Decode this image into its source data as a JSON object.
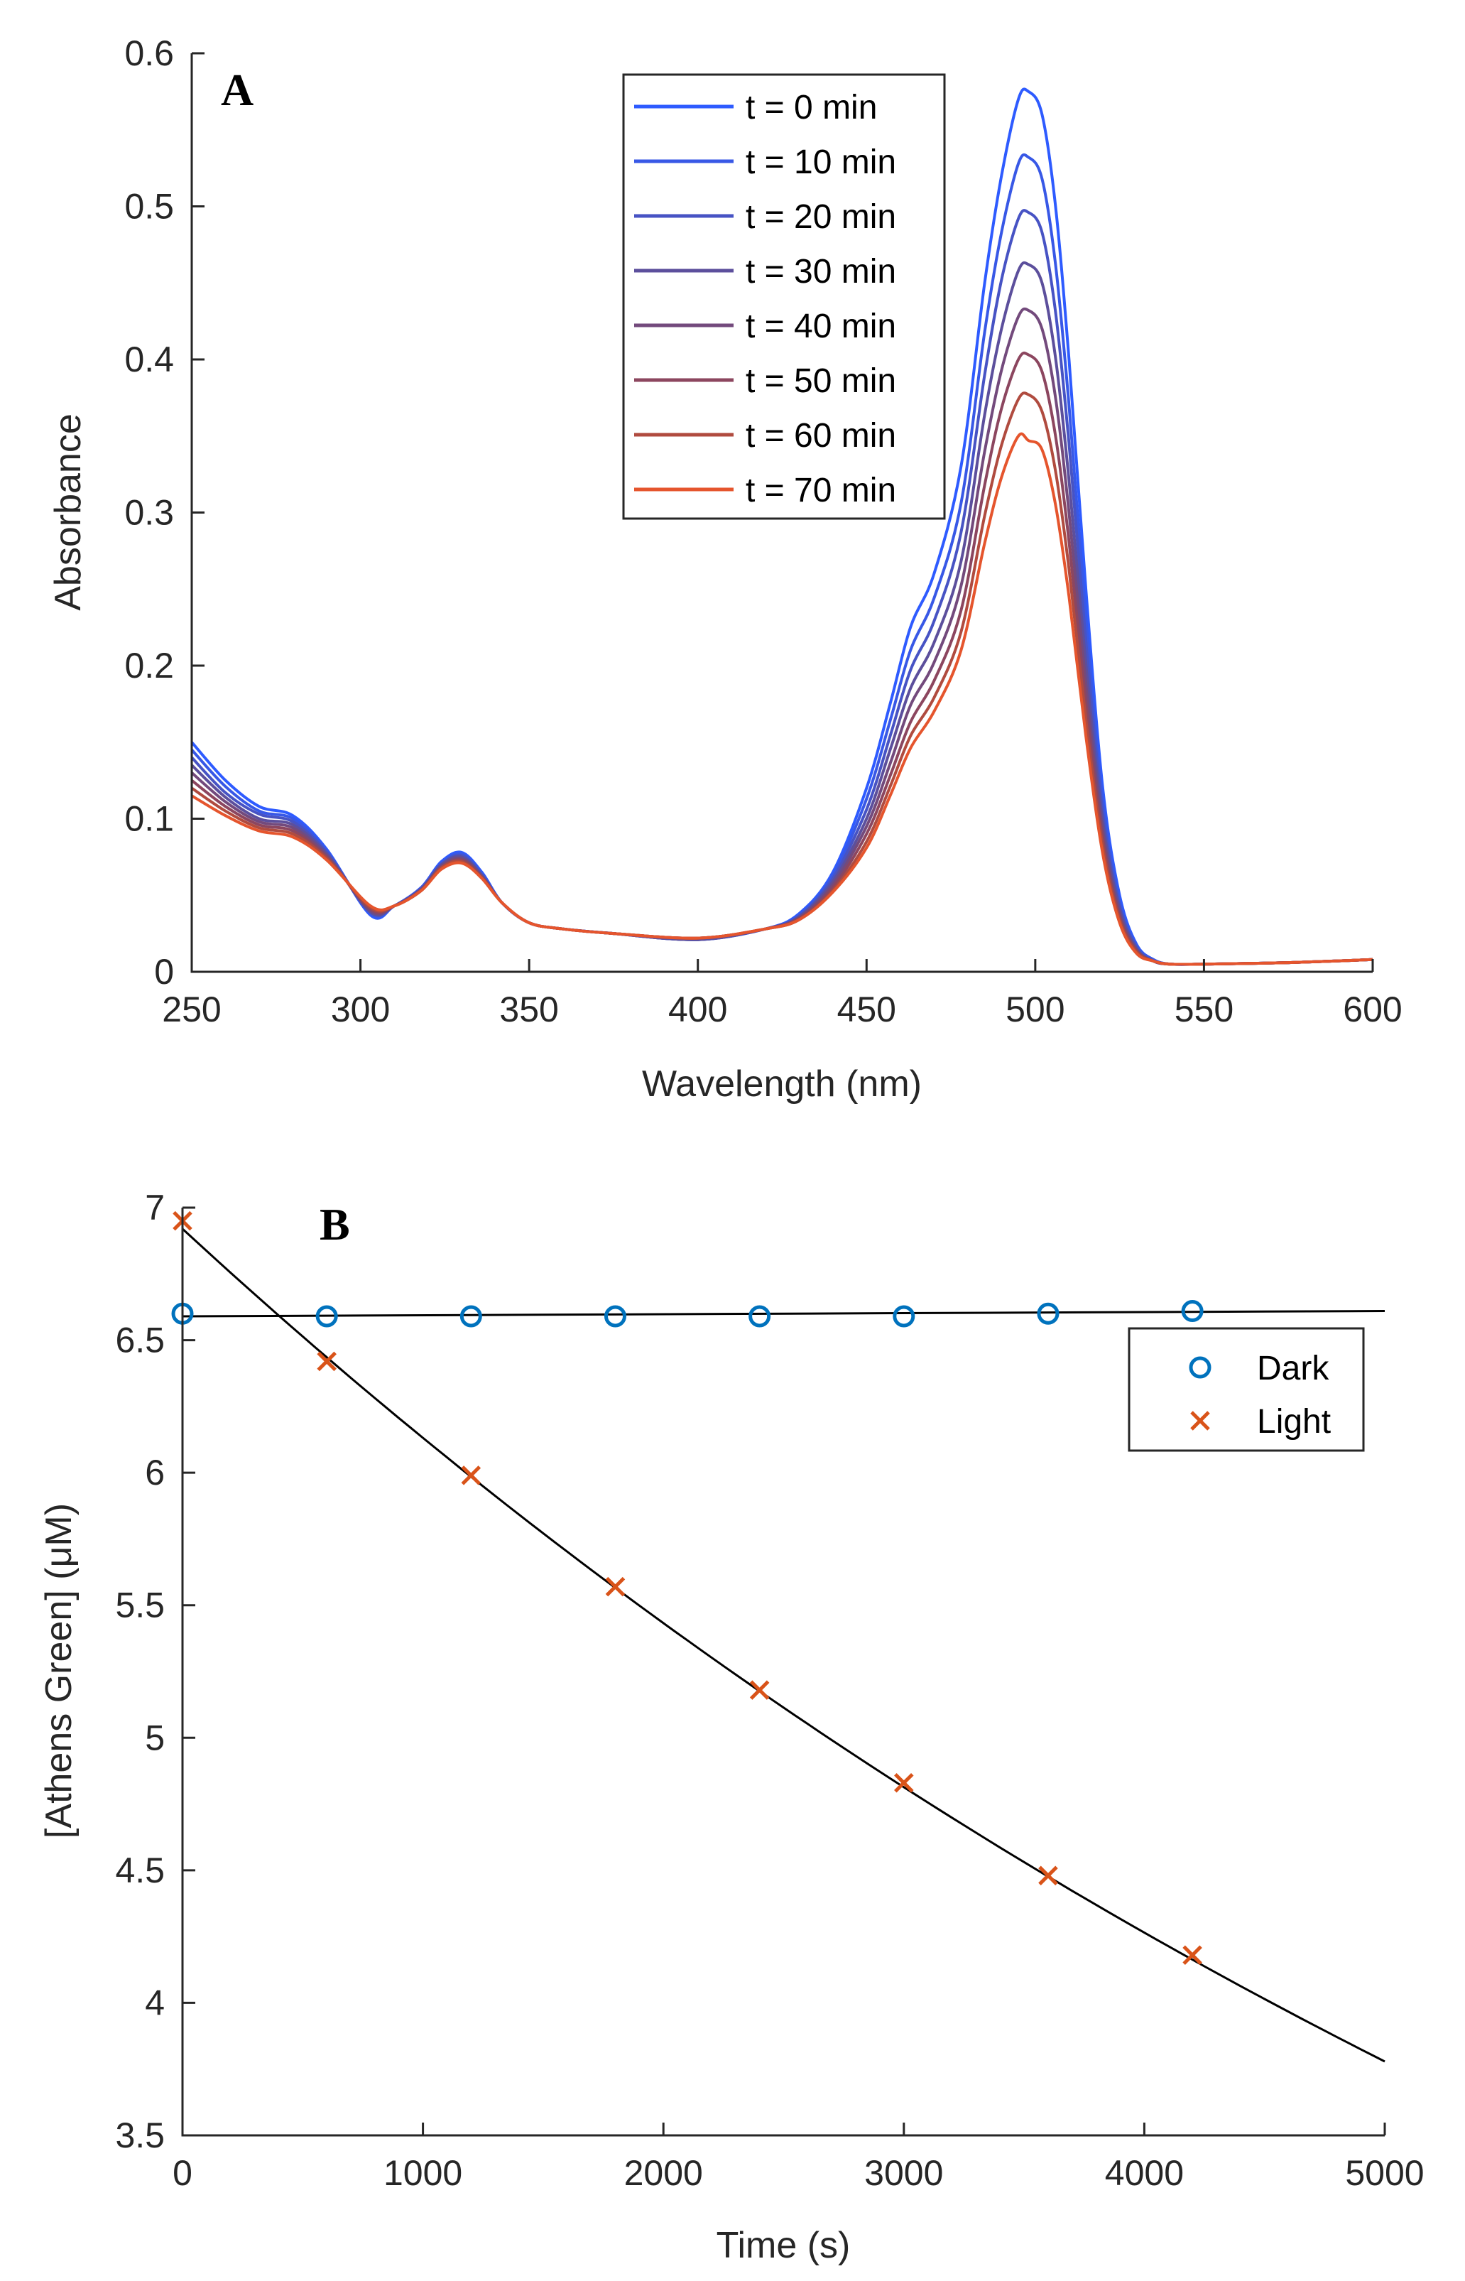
{
  "chart_data": [
    {
      "id": "A",
      "type": "line",
      "panel_label": "A",
      "title": "",
      "xlabel": "Wavelength (nm)",
      "ylabel": "Absorbance",
      "xlim": [
        250,
        600
      ],
      "ylim": [
        0,
        0.6
      ],
      "xticks": [
        250,
        300,
        350,
        400,
        450,
        500,
        550,
        600
      ],
      "xtick_labels": [
        "250",
        "300",
        "350",
        "400",
        "450",
        "500",
        "550",
        "600"
      ],
      "yticks": [
        0,
        0.1,
        0.2,
        0.3,
        0.4,
        0.5,
        0.6
      ],
      "ytick_labels": [
        "0",
        "0.1",
        "0.2",
        "0.3",
        "0.4",
        "0.5",
        "0.6"
      ],
      "legend_position": "top-center",
      "x": [
        250,
        260,
        270,
        280,
        290,
        303,
        310,
        318,
        324,
        330,
        336,
        342,
        350,
        360,
        375,
        400,
        420,
        430,
        440,
        450,
        457,
        463,
        470,
        478,
        485,
        490,
        495,
        498,
        502,
        506,
        510,
        515,
        520,
        525,
        530,
        535,
        540,
        550,
        575,
        600
      ],
      "series": [
        {
          "name": "t = 0 min",
          "color": "#2e5bff",
          "values": [
            0.15,
            0.125,
            0.108,
            0.102,
            0.08,
            0.037,
            0.043,
            0.055,
            0.072,
            0.078,
            0.065,
            0.045,
            0.032,
            0.028,
            0.025,
            0.021,
            0.028,
            0.038,
            0.065,
            0.12,
            0.175,
            0.225,
            0.26,
            0.33,
            0.45,
            0.52,
            0.57,
            0.575,
            0.56,
            0.5,
            0.4,
            0.25,
            0.12,
            0.05,
            0.018,
            0.008,
            0.005,
            0.005,
            0.006,
            0.008
          ]
        },
        {
          "name": "t = 10 min",
          "color": "#3858e6",
          "values": [
            0.145,
            0.121,
            0.105,
            0.1,
            0.079,
            0.038,
            0.043,
            0.055,
            0.071,
            0.077,
            0.064,
            0.045,
            0.032,
            0.028,
            0.025,
            0.021,
            0.028,
            0.037,
            0.063,
            0.113,
            0.164,
            0.21,
            0.244,
            0.306,
            0.418,
            0.483,
            0.528,
            0.532,
            0.518,
            0.462,
            0.37,
            0.231,
            0.112,
            0.046,
            0.017,
            0.008,
            0.005,
            0.005,
            0.006,
            0.008
          ]
        },
        {
          "name": "t = 20 min",
          "color": "#4753c4",
          "values": [
            0.14,
            0.117,
            0.103,
            0.098,
            0.078,
            0.039,
            0.043,
            0.054,
            0.07,
            0.076,
            0.063,
            0.045,
            0.032,
            0.028,
            0.025,
            0.021,
            0.028,
            0.036,
            0.061,
            0.106,
            0.154,
            0.197,
            0.229,
            0.287,
            0.39,
            0.452,
            0.492,
            0.496,
            0.483,
            0.431,
            0.345,
            0.216,
            0.104,
            0.043,
            0.016,
            0.007,
            0.005,
            0.005,
            0.006,
            0.008
          ]
        },
        {
          "name": "t = 30 min",
          "color": "#5c4f9c",
          "values": [
            0.135,
            0.114,
            0.1,
            0.096,
            0.077,
            0.039,
            0.043,
            0.054,
            0.07,
            0.075,
            0.063,
            0.045,
            0.032,
            0.028,
            0.025,
            0.021,
            0.028,
            0.036,
            0.059,
            0.1,
            0.145,
            0.185,
            0.215,
            0.268,
            0.364,
            0.42,
            0.458,
            0.462,
            0.45,
            0.401,
            0.321,
            0.201,
            0.098,
            0.041,
            0.015,
            0.007,
            0.005,
            0.005,
            0.006,
            0.008
          ]
        },
        {
          "name": "t = 40 min",
          "color": "#734a7c",
          "values": [
            0.13,
            0.111,
            0.098,
            0.094,
            0.076,
            0.04,
            0.043,
            0.054,
            0.069,
            0.074,
            0.062,
            0.045,
            0.032,
            0.028,
            0.025,
            0.022,
            0.028,
            0.035,
            0.057,
            0.095,
            0.136,
            0.174,
            0.202,
            0.252,
            0.34,
            0.393,
            0.428,
            0.432,
            0.42,
            0.375,
            0.3,
            0.188,
            0.092,
            0.038,
            0.014,
            0.007,
            0.005,
            0.005,
            0.006,
            0.008
          ]
        },
        {
          "name": "t = 50 min",
          "color": "#8c465f",
          "values": [
            0.125,
            0.108,
            0.096,
            0.092,
            0.075,
            0.041,
            0.043,
            0.053,
            0.068,
            0.073,
            0.062,
            0.045,
            0.032,
            0.028,
            0.025,
            0.022,
            0.028,
            0.035,
            0.055,
            0.09,
            0.128,
            0.163,
            0.19,
            0.236,
            0.318,
            0.368,
            0.4,
            0.403,
            0.392,
            0.35,
            0.281,
            0.176,
            0.087,
            0.036,
            0.014,
            0.007,
            0.005,
            0.005,
            0.006,
            0.008
          ]
        },
        {
          "name": "t = 60 min",
          "color": "#b04b3f",
          "values": [
            0.12,
            0.105,
            0.094,
            0.09,
            0.074,
            0.042,
            0.043,
            0.053,
            0.068,
            0.072,
            0.061,
            0.045,
            0.032,
            0.028,
            0.025,
            0.022,
            0.028,
            0.034,
            0.053,
            0.085,
            0.121,
            0.154,
            0.179,
            0.222,
            0.298,
            0.344,
            0.374,
            0.377,
            0.366,
            0.327,
            0.263,
            0.165,
            0.082,
            0.034,
            0.013,
            0.007,
            0.005,
            0.005,
            0.006,
            0.008
          ]
        },
        {
          "name": "t = 70 min",
          "color": "#e5552d",
          "values": [
            0.115,
            0.102,
            0.092,
            0.088,
            0.073,
            0.043,
            0.043,
            0.053,
            0.067,
            0.071,
            0.061,
            0.045,
            0.032,
            0.028,
            0.025,
            0.022,
            0.028,
            0.034,
            0.052,
            0.081,
            0.115,
            0.146,
            0.17,
            0.21,
            0.28,
            0.323,
            0.35,
            0.347,
            0.341,
            0.305,
            0.245,
            0.154,
            0.077,
            0.032,
            0.012,
            0.007,
            0.005,
            0.005,
            0.006,
            0.008
          ]
        }
      ]
    },
    {
      "id": "B",
      "type": "scatter",
      "panel_label": "B",
      "title": "",
      "xlabel": "Time (s)",
      "ylabel": "[Athens Green] (μM)",
      "xlim": [
        0,
        5000
      ],
      "ylim": [
        3.5,
        7
      ],
      "xticks": [
        0,
        1000,
        2000,
        3000,
        4000,
        5000
      ],
      "xtick_labels": [
        "0",
        "1000",
        "2000",
        "3000",
        "4000",
        "5000"
      ],
      "yticks": [
        3.5,
        4,
        4.5,
        5,
        5.5,
        6,
        6.5,
        7
      ],
      "ytick_labels": [
        "3.5",
        "4",
        "4.5",
        "5",
        "5.5",
        "6",
        "6.5",
        "7"
      ],
      "legend_position": "top-right",
      "x": [
        0,
        600,
        1200,
        1800,
        2400,
        3000,
        3600,
        4200
      ],
      "series": [
        {
          "name": "Dark",
          "marker": "circle",
          "color": "#0072bd",
          "values": [
            6.6,
            6.59,
            6.59,
            6.59,
            6.59,
            6.59,
            6.6,
            6.61
          ]
        },
        {
          "name": "Light",
          "marker": "x",
          "color": "#d95319",
          "values": [
            6.95,
            6.42,
            5.99,
            5.57,
            5.18,
            4.83,
            4.48,
            4.18
          ]
        }
      ],
      "fits": [
        {
          "for": "Dark",
          "model": "linear",
          "x_range": [
            0,
            5000
          ],
          "y_range": [
            6.59,
            6.61
          ],
          "color": "#000000"
        },
        {
          "for": "Light",
          "model": "exponential",
          "x_range": [
            0,
            5000
          ],
          "y_start": 6.92,
          "rate_per_s": 0.000121,
          "color": "#000000"
        }
      ]
    }
  ]
}
